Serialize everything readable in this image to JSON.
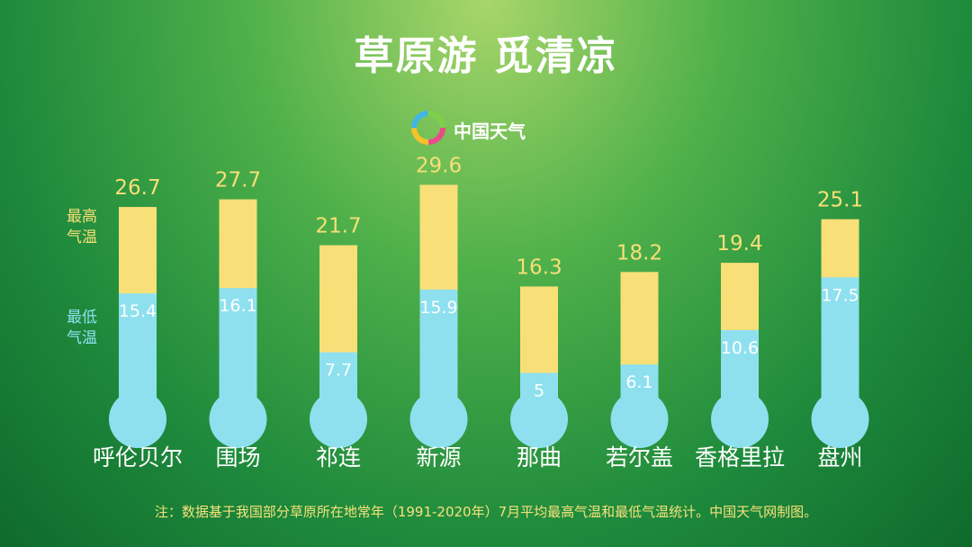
{
  "chart_data": {
    "type": "thermometer",
    "title": "草原游 觅清凉",
    "logo": "中国天气",
    "categories": [
      "呼伦贝尔",
      "围场",
      "祁连",
      "新源",
      "那曲",
      "若尔盖",
      "香格里拉",
      "盘州"
    ],
    "series": [
      {
        "name": "最高气温",
        "color": "#f8df78",
        "values": [
          26.7,
          27.7,
          21.7,
          29.6,
          16.3,
          18.2,
          19.4,
          25.1
        ]
      },
      {
        "name": "最低气温",
        "color": "#8ee0ef",
        "values": [
          15.4,
          16.1,
          7.7,
          15.9,
          5,
          6.1,
          10.6,
          17.5
        ]
      }
    ],
    "note": "注：数据基于我国部分草原所在地常年（1991-2020年）7月平均最高气温和最低气温统计。中国天气网制图。"
  }
}
